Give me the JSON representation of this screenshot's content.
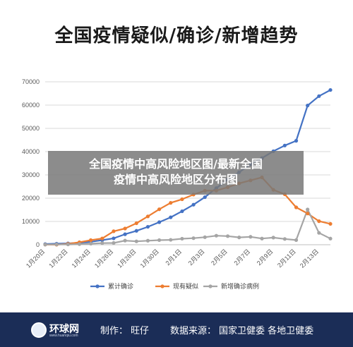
{
  "title": "全国疫情疑似/确诊/新增趋势",
  "overlay": {
    "line1": "全国疫情中高风险地区图/最新全国",
    "line2": "疫情中高风险地区分布图"
  },
  "footer": {
    "logo_name": "环球网",
    "logo_url": "www.huanqiu.com",
    "producer_label": "制作：",
    "producer": "旺仔",
    "source_label": "数据来源：",
    "source": "国家卫健委 各地卫健委"
  },
  "colors": {
    "confirmed": "#4472c4",
    "suspected": "#ed7d31",
    "new_confirmed": "#a5a5a5",
    "footer_bg": "#1b2d57"
  },
  "chart_data": {
    "type": "line",
    "title": "全国疫情疑似/确诊/新增趋势",
    "xlabel": "",
    "ylabel": "",
    "ylim": [
      0,
      70000
    ],
    "yticks": [
      0,
      10000,
      20000,
      30000,
      40000,
      50000,
      60000,
      70000
    ],
    "grid": true,
    "legend_position": "bottom",
    "categories": [
      "1月20日",
      "1月21日",
      "1月22日",
      "1月23日",
      "1月24日",
      "1月25日",
      "1月26日",
      "1月27日",
      "1月28日",
      "1月29日",
      "1月30日",
      "1月31日",
      "2月1日",
      "2月2日",
      "2月3日",
      "2月4日",
      "2月5日",
      "2月6日",
      "2月7日",
      "2月8日",
      "2月9日",
      "2月10日",
      "2月11日",
      "2月12日",
      "2月13日",
      "2月14日"
    ],
    "x_tick_labels": [
      "1月20日",
      "1月22日",
      "1月24日",
      "1月26日",
      "1月28日",
      "1月30日",
      "2月1日",
      "2月3日",
      "2月5日",
      "2月7日",
      "2月9日",
      "2月11日",
      "2月13日"
    ],
    "series": [
      {
        "name": "累计确诊",
        "color": "#4472c4",
        "values": [
          291,
          440,
          571,
          830,
          1287,
          1975,
          2744,
          4515,
          5974,
          7711,
          9692,
          11791,
          14380,
          17205,
          20438,
          24324,
          28018,
          31161,
          34546,
          37198,
          40171,
          42638,
          44653,
          59804,
          63851,
          66492
        ]
      },
      {
        "name": "现有疑似",
        "color": "#ed7d31",
        "values": [
          54,
          37,
          393,
          1072,
          1965,
          2684,
          5794,
          6973,
          9239,
          12167,
          15238,
          17988,
          19544,
          21558,
          23214,
          23260,
          24702,
          26359,
          27657,
          28942,
          23589,
          21675,
          16067,
          13435,
          10109,
          8969
        ]
      },
      {
        "name": "新增确诊病例",
        "color": "#a5a5a5",
        "values": [
          77,
          149,
          131,
          259,
          444,
          688,
          769,
          1771,
          1459,
          1737,
          1982,
          2102,
          2590,
          2829,
          3235,
          3887,
          3694,
          3143,
          3399,
          2656,
          3062,
          2478,
          2015,
          15152,
          5090,
          2641
        ]
      }
    ]
  }
}
